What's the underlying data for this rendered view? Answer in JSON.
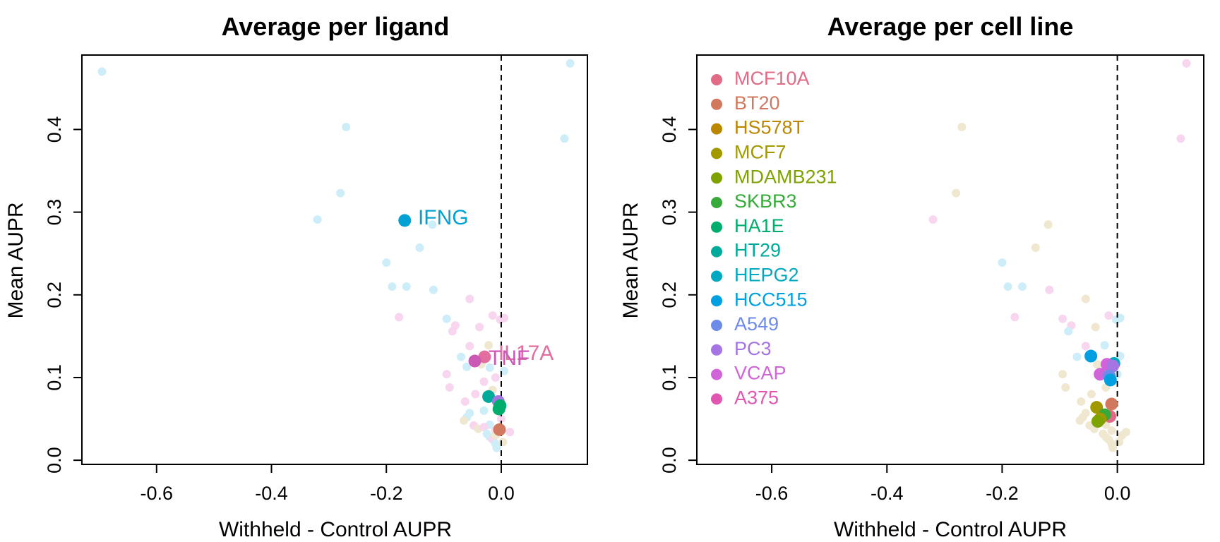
{
  "colors": {
    "IFNG": "#00A2D4",
    "TNF": "#CC58B6",
    "IL17A": "#E26EA0",
    "MCF10A": "#E16A86",
    "BT20": "#D2785F",
    "HS578T": "#BB8700",
    "MCF7": "#A29800",
    "MDAMB231": "#7EA300",
    "SKBR3": "#38AA3B",
    "HA1E": "#00AD6C",
    "HT29": "#00AA9B",
    "HEPG2": "#00A8C0",
    "HCC515": "#009FE0",
    "A549": "#6E8BEA",
    "PC3": "#A675E4",
    "VCAP": "#D064D8",
    "A375": "#E056B0",
    "bg_blue": "#CDEEF8",
    "bg_pink": "#F8D6EF",
    "bg_beige": "#EFE7CF"
  },
  "chart_data": [
    {
      "type": "scatter",
      "title": "Average per ligand",
      "xlabel": "Withheld - Control AUPR",
      "ylabel": "Mean AUPR",
      "xlim": [
        -0.73,
        0.15
      ],
      "ylim": [
        -0.005,
        0.49
      ],
      "xticks": [
        -0.6,
        -0.4,
        -0.2,
        0.0
      ],
      "xtick_labels": [
        "-0.6",
        "-0.4",
        "-0.2",
        "0.0"
      ],
      "yticks": [
        0.0,
        0.1,
        0.2,
        0.3,
        0.4
      ],
      "ytick_labels": [
        "0.0",
        "0.1",
        "0.2",
        "0.3",
        "0.4"
      ],
      "grid": false,
      "vline_x": 0.0,
      "annotations": [
        {
          "text": "IFNG",
          "x": -0.145,
          "y": 0.292,
          "color": "IFNG"
        },
        {
          "text": "IL17A",
          "x": -0.005,
          "y": 0.128,
          "color": "IL17A"
        },
        {
          "text": "TNF",
          "x": -0.022,
          "y": 0.122,
          "color": "TNF"
        }
      ],
      "background_points": [
        {
          "x": -0.695,
          "y": 0.47,
          "c": "bg_blue"
        },
        {
          "x": 0.12,
          "y": 0.48,
          "c": "bg_blue"
        },
        {
          "x": -0.27,
          "y": 0.403,
          "c": "bg_blue"
        },
        {
          "x": 0.11,
          "y": 0.389,
          "c": "bg_blue"
        },
        {
          "x": -0.28,
          "y": 0.323,
          "c": "bg_blue"
        },
        {
          "x": -0.32,
          "y": 0.291,
          "c": "bg_blue"
        },
        {
          "x": -0.12,
          "y": 0.285,
          "c": "bg_blue"
        },
        {
          "x": -0.142,
          "y": 0.257,
          "c": "bg_blue"
        },
        {
          "x": -0.2,
          "y": 0.239,
          "c": "bg_blue"
        },
        {
          "x": -0.19,
          "y": 0.21,
          "c": "bg_blue"
        },
        {
          "x": -0.165,
          "y": 0.21,
          "c": "bg_blue"
        },
        {
          "x": -0.118,
          "y": 0.206,
          "c": "bg_blue"
        },
        {
          "x": -0.095,
          "y": 0.171,
          "c": "bg_blue"
        },
        {
          "x": -0.055,
          "y": 0.195,
          "c": "bg_pink"
        },
        {
          "x": -0.178,
          "y": 0.173,
          "c": "bg_pink"
        },
        {
          "x": -0.08,
          "y": 0.163,
          "c": "bg_pink"
        },
        {
          "x": -0.038,
          "y": 0.161,
          "c": "bg_pink"
        },
        {
          "x": -0.085,
          "y": 0.156,
          "c": "bg_pink"
        },
        {
          "x": -0.015,
          "y": 0.175,
          "c": "bg_pink"
        },
        {
          "x": -0.002,
          "y": 0.17,
          "c": "bg_pink"
        },
        {
          "x": 0.005,
          "y": 0.172,
          "c": "bg_pink"
        },
        {
          "x": -0.055,
          "y": 0.138,
          "c": "bg_pink"
        },
        {
          "x": -0.022,
          "y": 0.139,
          "c": "bg_beige"
        },
        {
          "x": -0.07,
          "y": 0.125,
          "c": "bg_blue"
        },
        {
          "x": -0.06,
          "y": 0.113,
          "c": "bg_blue"
        },
        {
          "x": -0.035,
          "y": 0.116,
          "c": "bg_beige"
        },
        {
          "x": -0.02,
          "y": 0.112,
          "c": "bg_blue"
        },
        {
          "x": 0.005,
          "y": 0.108,
          "c": "bg_blue"
        },
        {
          "x": -0.095,
          "y": 0.104,
          "c": "bg_pink"
        },
        {
          "x": -0.01,
          "y": 0.1,
          "c": "bg_pink"
        },
        {
          "x": -0.03,
          "y": 0.095,
          "c": "bg_pink"
        },
        {
          "x": -0.09,
          "y": 0.088,
          "c": "bg_pink"
        },
        {
          "x": -0.045,
          "y": 0.08,
          "c": "bg_pink"
        },
        {
          "x": -0.015,
          "y": 0.085,
          "c": "bg_beige"
        },
        {
          "x": -0.02,
          "y": 0.075,
          "c": "bg_pink"
        },
        {
          "x": -0.063,
          "y": 0.071,
          "c": "bg_pink"
        },
        {
          "x": -0.03,
          "y": 0.06,
          "c": "bg_blue"
        },
        {
          "x": -0.055,
          "y": 0.057,
          "c": "bg_blue"
        },
        {
          "x": -0.06,
          "y": 0.052,
          "c": "bg_blue"
        },
        {
          "x": -0.065,
          "y": 0.048,
          "c": "bg_beige"
        },
        {
          "x": -0.048,
          "y": 0.042,
          "c": "bg_pink"
        },
        {
          "x": -0.04,
          "y": 0.038,
          "c": "bg_beige"
        },
        {
          "x": -0.02,
          "y": 0.043,
          "c": "bg_blue"
        },
        {
          "x": -0.03,
          "y": 0.04,
          "c": "bg_pink"
        },
        {
          "x": -0.025,
          "y": 0.032,
          "c": "bg_blue"
        },
        {
          "x": -0.01,
          "y": 0.036,
          "c": "bg_pink"
        },
        {
          "x": 0.015,
          "y": 0.034,
          "c": "bg_pink"
        },
        {
          "x": -0.02,
          "y": 0.028,
          "c": "bg_blue"
        },
        {
          "x": -0.015,
          "y": 0.025,
          "c": "bg_pink"
        },
        {
          "x": -0.01,
          "y": 0.02,
          "c": "bg_blue"
        },
        {
          "x": 0.003,
          "y": 0.022,
          "c": "bg_beige"
        },
        {
          "x": -0.008,
          "y": 0.015,
          "c": "bg_blue"
        },
        {
          "x": -0.01,
          "y": 0.03,
          "c": "bg_beige"
        },
        {
          "x": 0.0,
          "y": 0.05,
          "c": "bg_pink"
        }
      ],
      "highlight_points": [
        {
          "name": "IFNG",
          "x": -0.168,
          "y": 0.29,
          "c": "IFNG"
        },
        {
          "name": "IL17A",
          "x": -0.029,
          "y": 0.125,
          "c": "IL17A"
        },
        {
          "name": "TNF",
          "x": -0.046,
          "y": 0.12,
          "c": "TNF"
        },
        {
          "x": -0.022,
          "y": 0.077,
          "c": "HT29"
        },
        {
          "x": -0.005,
          "y": 0.071,
          "c": "PC3"
        },
        {
          "x": -0.002,
          "y": 0.066,
          "c": "HA1E"
        },
        {
          "x": -0.004,
          "y": 0.062,
          "c": "HA1E"
        },
        {
          "x": -0.003,
          "y": 0.037,
          "c": "BT20"
        }
      ]
    },
    {
      "type": "scatter",
      "title": "Average per cell line",
      "xlabel": "Withheld - Control AUPR",
      "ylabel": "Mean AUPR",
      "xlim": [
        -0.73,
        0.15
      ],
      "ylim": [
        -0.005,
        0.49
      ],
      "xticks": [
        -0.6,
        -0.4,
        -0.2,
        0.0
      ],
      "xtick_labels": [
        "-0.6",
        "-0.4",
        "-0.2",
        "0.0"
      ],
      "yticks": [
        0.0,
        0.1,
        0.2,
        0.3,
        0.4
      ],
      "ytick_labels": [
        "0.0",
        "0.1",
        "0.2",
        "0.3",
        "0.4"
      ],
      "grid": false,
      "vline_x": 0.0,
      "legend_position": "top-left",
      "legend": [
        "MCF10A",
        "BT20",
        "HS578T",
        "MCF7",
        "MDAMB231",
        "SKBR3",
        "HA1E",
        "HT29",
        "HEPG2",
        "HCC515",
        "A549",
        "PC3",
        "VCAP",
        "A375"
      ],
      "background_points": [
        {
          "x": 0.12,
          "y": 0.48,
          "c": "bg_pink"
        },
        {
          "x": 0.11,
          "y": 0.389,
          "c": "bg_pink"
        },
        {
          "x": -0.27,
          "y": 0.403,
          "c": "bg_beige"
        },
        {
          "x": -0.28,
          "y": 0.323,
          "c": "bg_beige"
        },
        {
          "x": -0.32,
          "y": 0.291,
          "c": "bg_pink"
        },
        {
          "x": -0.12,
          "y": 0.285,
          "c": "bg_beige"
        },
        {
          "x": -0.142,
          "y": 0.257,
          "c": "bg_beige"
        },
        {
          "x": -0.2,
          "y": 0.239,
          "c": "bg_blue"
        },
        {
          "x": -0.19,
          "y": 0.21,
          "c": "bg_blue"
        },
        {
          "x": -0.165,
          "y": 0.21,
          "c": "bg_blue"
        },
        {
          "x": -0.118,
          "y": 0.206,
          "c": "bg_pink"
        },
        {
          "x": -0.055,
          "y": 0.195,
          "c": "bg_beige"
        },
        {
          "x": -0.178,
          "y": 0.173,
          "c": "bg_pink"
        },
        {
          "x": -0.095,
          "y": 0.171,
          "c": "bg_pink"
        },
        {
          "x": -0.08,
          "y": 0.163,
          "c": "bg_pink"
        },
        {
          "x": -0.038,
          "y": 0.161,
          "c": "bg_beige"
        },
        {
          "x": -0.085,
          "y": 0.156,
          "c": "bg_blue"
        },
        {
          "x": -0.015,
          "y": 0.175,
          "c": "bg_pink"
        },
        {
          "x": -0.002,
          "y": 0.17,
          "c": "bg_blue"
        },
        {
          "x": 0.005,
          "y": 0.172,
          "c": "bg_blue"
        },
        {
          "x": -0.055,
          "y": 0.138,
          "c": "bg_pink"
        },
        {
          "x": -0.022,
          "y": 0.139,
          "c": "bg_blue"
        },
        {
          "x": -0.07,
          "y": 0.125,
          "c": "bg_blue"
        },
        {
          "x": 0.005,
          "y": 0.126,
          "c": "bg_blue"
        },
        {
          "x": -0.035,
          "y": 0.116,
          "c": "bg_beige"
        },
        {
          "x": 0.0,
          "y": 0.104,
          "c": "bg_blue"
        },
        {
          "x": -0.095,
          "y": 0.104,
          "c": "bg_beige"
        },
        {
          "x": -0.09,
          "y": 0.088,
          "c": "bg_beige"
        },
        {
          "x": -0.045,
          "y": 0.08,
          "c": "bg_beige"
        },
        {
          "x": -0.02,
          "y": 0.088,
          "c": "bg_beige"
        },
        {
          "x": -0.063,
          "y": 0.071,
          "c": "bg_beige"
        },
        {
          "x": -0.055,
          "y": 0.057,
          "c": "bg_beige"
        },
        {
          "x": -0.06,
          "y": 0.052,
          "c": "bg_beige"
        },
        {
          "x": -0.065,
          "y": 0.048,
          "c": "bg_beige"
        },
        {
          "x": -0.048,
          "y": 0.042,
          "c": "bg_beige"
        },
        {
          "x": -0.04,
          "y": 0.038,
          "c": "bg_beige"
        },
        {
          "x": -0.02,
          "y": 0.043,
          "c": "bg_beige"
        },
        {
          "x": -0.025,
          "y": 0.032,
          "c": "bg_beige"
        },
        {
          "x": -0.01,
          "y": 0.036,
          "c": "bg_beige"
        },
        {
          "x": 0.015,
          "y": 0.034,
          "c": "bg_beige"
        },
        {
          "x": -0.02,
          "y": 0.028,
          "c": "bg_beige"
        },
        {
          "x": -0.015,
          "y": 0.025,
          "c": "bg_beige"
        },
        {
          "x": -0.01,
          "y": 0.02,
          "c": "bg_beige"
        },
        {
          "x": 0.003,
          "y": 0.022,
          "c": "bg_beige"
        },
        {
          "x": -0.008,
          "y": 0.015,
          "c": "bg_beige"
        },
        {
          "x": 0.008,
          "y": 0.03,
          "c": "bg_beige"
        }
      ],
      "highlight_points": [
        {
          "x": -0.046,
          "y": 0.126,
          "c": "HCC515"
        },
        {
          "x": -0.006,
          "y": 0.117,
          "c": "HEPG2"
        },
        {
          "x": -0.018,
          "y": 0.116,
          "c": "VCAP"
        },
        {
          "x": -0.008,
          "y": 0.114,
          "c": "PC3"
        },
        {
          "x": -0.03,
          "y": 0.104,
          "c": "VCAP"
        },
        {
          "x": -0.014,
          "y": 0.102,
          "c": "A549"
        },
        {
          "x": -0.012,
          "y": 0.097,
          "c": "HCC515"
        },
        {
          "x": -0.01,
          "y": 0.068,
          "c": "BT20"
        },
        {
          "x": -0.036,
          "y": 0.064,
          "c": "MCF7"
        },
        {
          "x": -0.013,
          "y": 0.053,
          "c": "MCF10A"
        },
        {
          "x": -0.022,
          "y": 0.055,
          "c": "SKBR3"
        },
        {
          "x": -0.03,
          "y": 0.05,
          "c": "MCF7"
        },
        {
          "x": -0.034,
          "y": 0.047,
          "c": "MDAMB231"
        }
      ]
    }
  ]
}
